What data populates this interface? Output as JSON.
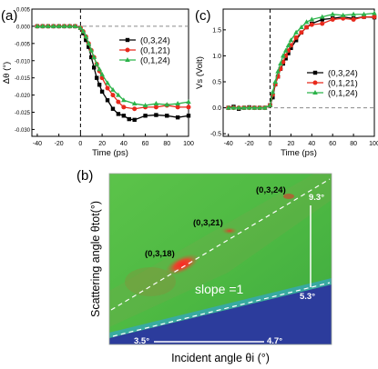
{
  "colors": {
    "s0": "#000000",
    "s1": "#e8291c",
    "s2": "#2cb34a",
    "zero_line": "#8a8a8a",
    "heat_low": "#2c3c9c",
    "heat_mid": "#4fbf3f",
    "heat_high": "#ff2020",
    "annot": "#ffffff"
  },
  "panels": {
    "a_label": "(a)",
    "b_label": "(b)",
    "c_label": "(c)"
  },
  "chart_data": [
    {
      "type": "line",
      "panel": "a",
      "xlabel": "Time (ps)",
      "ylabel": "Δθ (°)",
      "xlim": [
        -45,
        100
      ],
      "ylim": [
        -0.032,
        0.005
      ],
      "xticks": [
        -40,
        -20,
        0,
        20,
        40,
        60,
        80,
        100
      ],
      "xtick_labels": [
        "-40",
        "-20",
        "0",
        "20",
        "40",
        "60",
        "80",
        "100"
      ],
      "yticks": [
        0.005,
        0.0,
        -0.005,
        -0.01,
        -0.015,
        -0.02,
        -0.025,
        -0.03
      ],
      "ytick_labels": [
        "0.005",
        "0.000",
        "-0.005",
        "-0.010",
        "-0.015",
        "-0.020",
        "-0.025",
        "-0.030"
      ],
      "legend_position": "right",
      "series": [
        {
          "name": "(0,3,24)",
          "x": [
            -40,
            -35,
            -30,
            -25,
            -20,
            -15,
            -10,
            -5,
            0,
            2.5,
            5,
            7.5,
            10,
            12.5,
            15,
            17.5,
            20,
            25,
            30,
            35,
            40,
            45,
            50,
            60,
            70,
            80,
            90,
            100
          ],
          "y": [
            0.0,
            0.0,
            0.0,
            0.0,
            0.0,
            0.0,
            0.0,
            0.0,
            -0.0005,
            -0.002,
            -0.004,
            -0.006,
            -0.009,
            -0.012,
            -0.015,
            -0.017,
            -0.019,
            -0.0215,
            -0.024,
            -0.0255,
            -0.026,
            -0.027,
            -0.0272,
            -0.026,
            -0.0258,
            -0.026,
            -0.0265,
            -0.026
          ]
        },
        {
          "name": "(0,1,21)",
          "x": [
            -40,
            -35,
            -30,
            -25,
            -20,
            -15,
            -10,
            -5,
            0,
            2.5,
            5,
            7.5,
            10,
            12.5,
            15,
            17.5,
            20,
            25,
            30,
            35,
            40,
            50,
            60,
            70,
            80,
            90,
            100
          ],
          "y": [
            0.0,
            0.0,
            0.0,
            0.0,
            0.0,
            0.0,
            0.0,
            0.0,
            -0.0005,
            -0.0015,
            -0.003,
            -0.005,
            -0.007,
            -0.009,
            -0.011,
            -0.013,
            -0.015,
            -0.018,
            -0.02,
            -0.022,
            -0.0235,
            -0.024,
            -0.0235,
            -0.0235,
            -0.023,
            -0.0235,
            -0.0235
          ]
        },
        {
          "name": "(0,1,24)",
          "x": [
            -40,
            -35,
            -30,
            -25,
            -20,
            -15,
            -10,
            -5,
            0,
            2.5,
            5,
            7.5,
            10,
            12.5,
            15,
            17.5,
            20,
            25,
            30,
            35,
            40,
            50,
            60,
            70,
            80,
            90,
            100
          ],
          "y": [
            0.0,
            0.0,
            0.0,
            0.0,
            0.0,
            0.0,
            0.0,
            0.0,
            -0.0005,
            -0.0015,
            -0.003,
            -0.005,
            -0.007,
            -0.009,
            -0.011,
            -0.0125,
            -0.014,
            -0.0165,
            -0.0185,
            -0.02,
            -0.0215,
            -0.0225,
            -0.023,
            -0.0225,
            -0.0228,
            -0.0225,
            -0.022
          ]
        }
      ]
    },
    {
      "type": "line",
      "panel": "c",
      "xlabel": "Time (ps)",
      "ylabel": "Vs (Volt)",
      "xlim": [
        -45,
        100
      ],
      "ylim": [
        -0.55,
        1.9
      ],
      "xticks": [
        -40,
        -20,
        0,
        20,
        40,
        60,
        80,
        100
      ],
      "xtick_labels": [
        "-40",
        "-20",
        "0",
        "20",
        "40",
        "60",
        "80",
        "100"
      ],
      "yticks": [
        -0.5,
        0.0,
        0.5,
        1.0,
        1.5
      ],
      "ytick_labels": [
        "-0.5",
        "0.0",
        "0.5",
        "1.0",
        "1.5"
      ],
      "legend_position": "right",
      "series": [
        {
          "name": "(0,3,24)",
          "x": [
            -40,
            -35,
            -30,
            -25,
            -20,
            -15,
            -10,
            -5,
            0,
            2.5,
            5,
            7.5,
            10,
            12.5,
            15,
            17.5,
            20,
            25,
            30,
            35,
            40,
            50,
            60,
            70,
            80,
            90,
            100
          ],
          "y": [
            0.0,
            0.02,
            -0.02,
            0.0,
            0.01,
            0.0,
            0.0,
            0.0,
            0.05,
            0.2,
            0.45,
            0.6,
            0.75,
            0.85,
            0.95,
            1.05,
            1.15,
            1.3,
            1.45,
            1.55,
            1.62,
            1.7,
            1.72,
            1.75,
            1.72,
            1.75,
            1.74
          ]
        },
        {
          "name": "(0,1,21)",
          "x": [
            -40,
            -35,
            -30,
            -25,
            -20,
            -15,
            -10,
            -5,
            0,
            2.5,
            5,
            7.5,
            10,
            12.5,
            15,
            17.5,
            20,
            25,
            30,
            35,
            40,
            50,
            60,
            70,
            80,
            90,
            100
          ],
          "y": [
            0.0,
            0.0,
            0.0,
            0.0,
            0.0,
            0.0,
            0.0,
            0.0,
            0.05,
            0.25,
            0.45,
            0.6,
            0.75,
            0.88,
            1.0,
            1.1,
            1.2,
            1.35,
            1.45,
            1.55,
            1.6,
            1.62,
            1.7,
            1.72,
            1.7,
            1.75,
            1.75
          ]
        },
        {
          "name": "(0,1,24)",
          "x": [
            -40,
            -35,
            -30,
            -25,
            -20,
            -15,
            -10,
            -5,
            0,
            2.5,
            5,
            7.5,
            10,
            12.5,
            15,
            17.5,
            20,
            25,
            30,
            35,
            40,
            50,
            60,
            70,
            80,
            90,
            100
          ],
          "y": [
            0.0,
            0.0,
            0.0,
            0.0,
            0.0,
            0.0,
            0.0,
            0.0,
            0.05,
            0.3,
            0.5,
            0.7,
            0.85,
            1.0,
            1.1,
            1.2,
            1.3,
            1.45,
            1.55,
            1.65,
            1.7,
            1.75,
            1.8,
            1.78,
            1.8,
            1.8,
            1.82
          ]
        }
      ]
    },
    {
      "type": "heatmap",
      "panel": "b",
      "xlabel": "Incident angle θi (°)",
      "ylabel": "Scattering angle θtot(°)",
      "annotations": {
        "peaks": [
          {
            "label": "(0,3,18)",
            "intensity": "high"
          },
          {
            "label": "(0,3,21)",
            "intensity": "medium"
          },
          {
            "label": "(0,3,24)",
            "intensity": "low"
          }
        ],
        "slope_text": "slope =1",
        "scatter_low": "5.3°",
        "scatter_high": "9.3°",
        "incident_low": "3.5°",
        "incident_high": "4.7°"
      }
    }
  ]
}
